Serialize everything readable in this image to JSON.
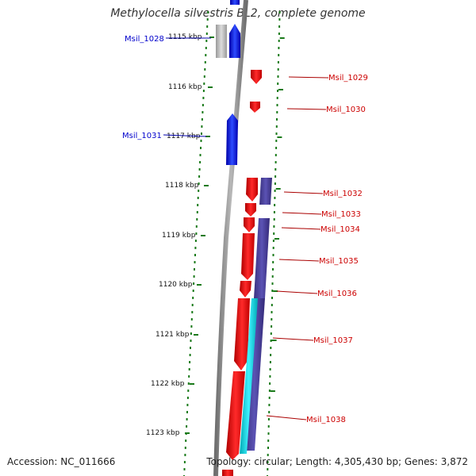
{
  "title": "Methylocella silvestris BL2, complete genome",
  "footer": {
    "accession": "Accession: NC_011666",
    "topology": "Topology: circular; Length: 4,305,430 bp; Genes: 3,872"
  },
  "scale": {
    "unit": "kbp",
    "ticks": [
      "1115 kbp",
      "1116 kbp",
      "1117 kbp",
      "1118 kbp",
      "1119 kbp",
      "1120 kbp",
      "1121 kbp",
      "1122 kbp",
      "1123 kbp"
    ]
  },
  "genes_left": [
    "Msil_1028",
    "Msil_1031"
  ],
  "genes_right": [
    "Msil_1029",
    "Msil_1030",
    "Msil_1032",
    "Msil_1033",
    "Msil_1034",
    "Msil_1035",
    "Msil_1036",
    "Msil_1037",
    "Msil_1038"
  ],
  "colors": {
    "forward_gene": "#0000ee",
    "reverse_gene": "#ee0000",
    "reverse_feature": "#4a3f9a",
    "other_feature": "#00d5dd",
    "pseudo_gene": "#b9b9b9",
    "backbone": "#8c8c8c",
    "tick": "#1a7a1a",
    "left_label": "#0000cc",
    "right_label": "#cc0000"
  }
}
